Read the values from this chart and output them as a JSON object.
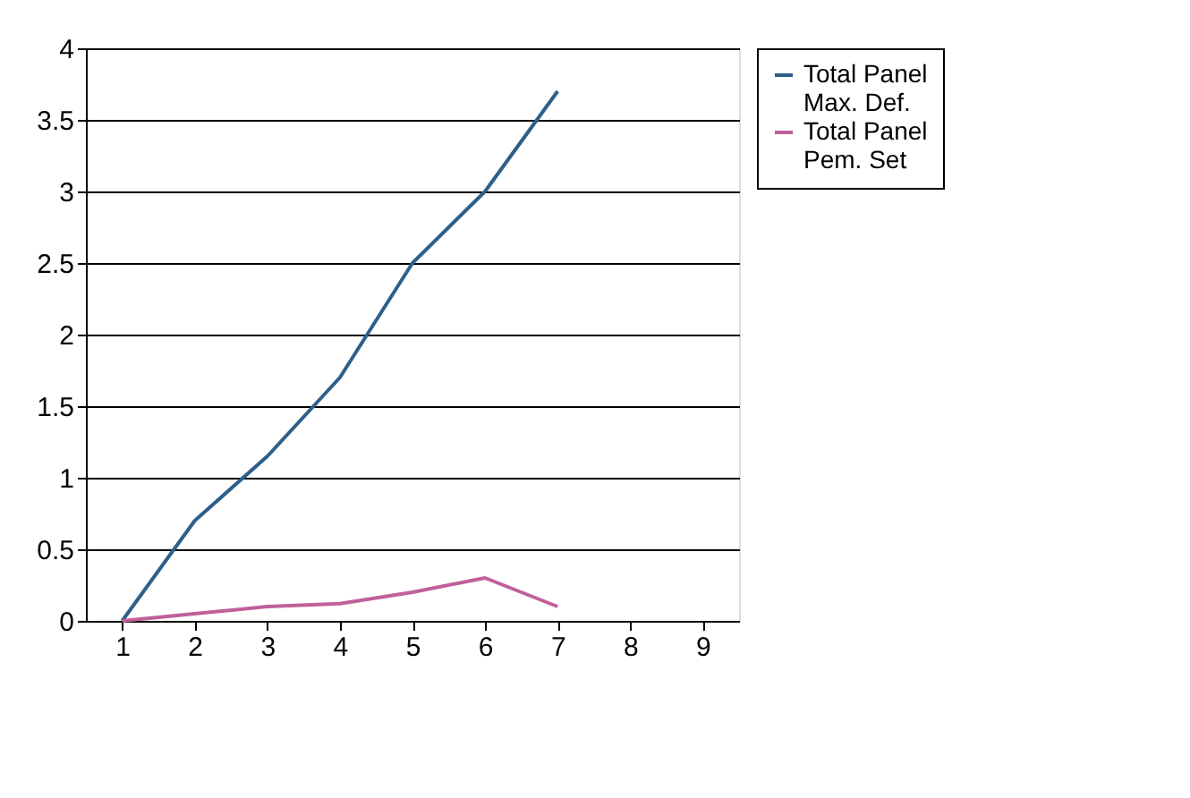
{
  "chart_data": {
    "type": "line",
    "categories": [
      "1",
      "2",
      "3",
      "4",
      "5",
      "6",
      "7",
      "8",
      "9"
    ],
    "series": [
      {
        "name": "Total Panel Max. Def.",
        "color": "#2e5f8a",
        "values": [
          0,
          0.7,
          1.15,
          1.7,
          2.5,
          3.0,
          3.7,
          null,
          null
        ]
      },
      {
        "name": "Total Panel Pem. Set",
        "color": "#c0609a",
        "values": [
          0,
          0.05,
          0.1,
          0.12,
          0.2,
          0.3,
          0.1,
          null,
          null
        ]
      }
    ],
    "ylim": [
      0,
      4
    ],
    "yticks": [
      0,
      0.5,
      1,
      1.5,
      2,
      2.5,
      3,
      3.5,
      4
    ],
    "grid": "y",
    "legend": "right",
    "marker": "none",
    "line_style": "solid"
  }
}
